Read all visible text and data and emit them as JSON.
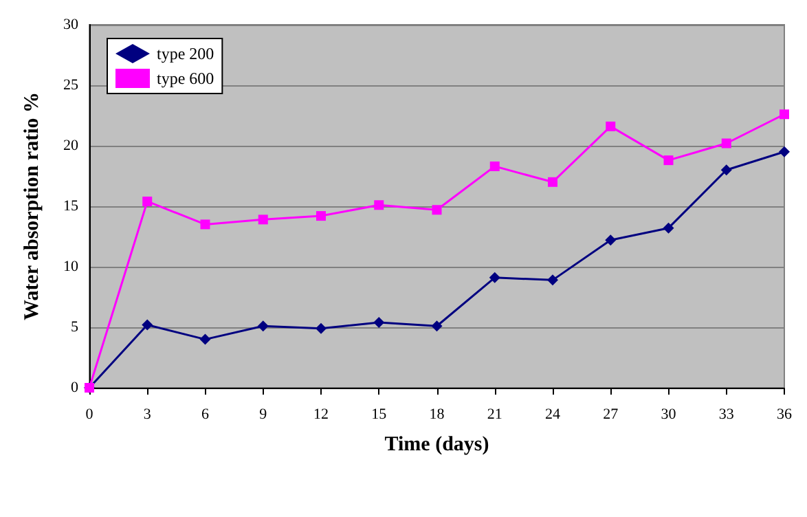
{
  "chart_data": {
    "type": "line",
    "xlabel": "Time (days)",
    "ylabel": "Water absorption ratio %",
    "x": [
      0,
      3,
      6,
      9,
      12,
      15,
      18,
      21,
      24,
      27,
      30,
      33,
      36
    ],
    "series": [
      {
        "name": "type 200",
        "color": "#000080",
        "marker": "diamond",
        "values": [
          0,
          5.2,
          4.0,
          5.1,
          4.9,
          5.4,
          5.1,
          9.1,
          8.9,
          12.2,
          13.2,
          18.0,
          19.5
        ]
      },
      {
        "name": "type 600",
        "color": "#ff00ff",
        "marker": "square",
        "values": [
          0,
          15.4,
          13.5,
          13.9,
          14.2,
          15.1,
          14.7,
          18.3,
          17.0,
          21.6,
          18.8,
          20.2,
          22.6
        ]
      }
    ],
    "xlim": [
      0,
      36
    ],
    "xticks": [
      0,
      3,
      6,
      9,
      12,
      15,
      18,
      21,
      24,
      27,
      30,
      33,
      36
    ],
    "ylim": [
      0,
      30
    ],
    "yticks": [
      0,
      5,
      10,
      15,
      20,
      25,
      30
    ],
    "grid": "y",
    "legend": "top left"
  }
}
